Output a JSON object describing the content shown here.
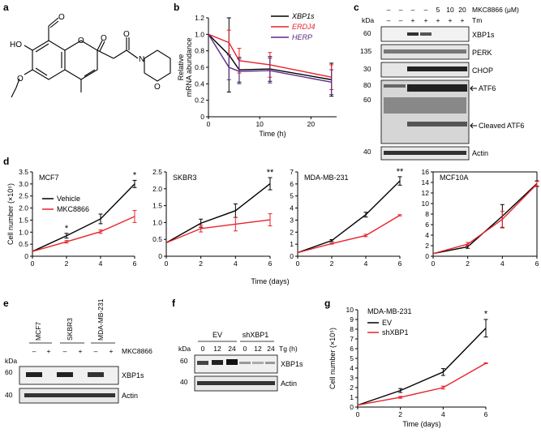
{
  "panel_labels": [
    "a",
    "b",
    "c",
    "d",
    "e",
    "f",
    "g"
  ],
  "chem": {
    "atoms": {
      "o_ald": "O",
      "ho": "HO",
      "o_ring": "O",
      "o_keto": "O",
      "o_lac": "O",
      "o_meo": "O",
      "n": "N",
      "o_morph": "O"
    }
  },
  "chart_data": [
    {
      "panel": "b",
      "type": "line",
      "ylabel": "Relative mRNA abundance",
      "ylabel_lines": [
        "Relative",
        "mRNA abundance"
      ],
      "xlabel": "Time (h)",
      "xlim": [
        0,
        25
      ],
      "ylim": [
        0,
        1.2
      ],
      "xticks": [
        "0",
        "10",
        "20"
      ],
      "xtick_values": [
        0,
        10,
        20
      ],
      "yticks": [
        "0",
        "0.2",
        "0.4",
        "0.6",
        "0.8",
        "1.0",
        "1.2"
      ],
      "ytick_values": [
        0,
        0.2,
        0.4,
        0.6,
        0.8,
        1.0,
        1.2
      ],
      "x": [
        0,
        4,
        6,
        12,
        24
      ],
      "series": [
        {
          "name": "XBP1s",
          "color": "#000000",
          "values": [
            1.0,
            0.75,
            0.57,
            0.58,
            0.45
          ],
          "err": [
            0,
            0.45,
            0.15,
            0.15,
            0.2
          ]
        },
        {
          "name": "ERDJ4",
          "color": "#e8232b",
          "values": [
            1.0,
            0.9,
            0.68,
            0.63,
            0.48
          ],
          "err": [
            0,
            0.15,
            0.15,
            0.15,
            0.15
          ]
        },
        {
          "name": "HERP",
          "color": "#5b2a86",
          "values": [
            1.0,
            0.6,
            0.55,
            0.56,
            0.42
          ],
          "err": [
            0,
            0.15,
            0.15,
            0.15,
            0.15
          ]
        }
      ]
    },
    {
      "panel": "d",
      "type": "line",
      "subtitle": "MCF7",
      "ylabel": "Cell number (×10⁵)",
      "xlabel": "Time (days)",
      "xlim": [
        0,
        6
      ],
      "ylim": [
        0,
        3.5
      ],
      "xticks": [
        "0",
        "2",
        "4",
        "6"
      ],
      "xtick_values": [
        0,
        2,
        4,
        6
      ],
      "yticks": [
        "0",
        "0.5",
        "1.0",
        "1.5",
        "2.0",
        "2.5",
        "3.0",
        "3.5"
      ],
      "ytick_values": [
        0,
        0.5,
        1.0,
        1.5,
        2.0,
        2.5,
        3.0,
        3.5
      ],
      "x": [
        0,
        2,
        4,
        6
      ],
      "series": [
        {
          "name": "Vehicle",
          "color": "#000000",
          "values": [
            0.2,
            0.85,
            1.55,
            3.0
          ],
          "err": [
            0,
            0.1,
            0.2,
            0.15
          ]
        },
        {
          "name": "MKC8866",
          "color": "#e8232b",
          "values": [
            0.2,
            0.6,
            1.02,
            1.65
          ],
          "err": [
            0,
            0.05,
            0.07,
            0.25
          ]
        }
      ],
      "annotations": [
        {
          "x": 2,
          "y": 1.05,
          "text": "*"
        },
        {
          "x": 6,
          "y": 3.25,
          "text": "*"
        }
      ]
    },
    {
      "panel": "d",
      "type": "line",
      "subtitle": "SKBR3",
      "xlim": [
        0,
        6
      ],
      "ylim": [
        0,
        2.5
      ],
      "xticks": [
        "0",
        "2",
        "4",
        "6"
      ],
      "xtick_values": [
        0,
        2,
        4,
        6
      ],
      "yticks": [
        "0",
        "0.5",
        "1.0",
        "1.5",
        "2.0",
        "2.5"
      ],
      "ytick_values": [
        0,
        0.5,
        1.0,
        1.5,
        2.0,
        2.5
      ],
      "x": [
        0,
        2,
        4,
        6
      ],
      "series": [
        {
          "name": "Vehicle",
          "color": "#000000",
          "values": [
            0.4,
            0.98,
            1.35,
            2.15
          ],
          "err": [
            0,
            0.12,
            0.2,
            0.18
          ]
        },
        {
          "name": "MKC8866",
          "color": "#e8232b",
          "values": [
            0.4,
            0.82,
            0.95,
            1.08
          ],
          "err": [
            0,
            0.1,
            0.2,
            0.18
          ]
        }
      ],
      "annotations": [
        {
          "x": 6,
          "y": 2.4,
          "text": "**"
        }
      ]
    },
    {
      "panel": "d",
      "type": "line",
      "subtitle": "MDA-MB-231",
      "xlim": [
        0,
        6
      ],
      "ylim": [
        0,
        7
      ],
      "xticks": [
        "0",
        "2",
        "4",
        "6"
      ],
      "xtick_values": [
        0,
        2,
        4,
        6
      ],
      "yticks": [
        "0",
        "1",
        "2",
        "3",
        "4",
        "5",
        "6",
        "7"
      ],
      "ytick_values": [
        0,
        1,
        2,
        3,
        4,
        5,
        6,
        7
      ],
      "x": [
        0,
        2,
        4,
        6
      ],
      "series": [
        {
          "name": "Vehicle",
          "color": "#000000",
          "values": [
            0.3,
            1.3,
            3.45,
            6.25
          ],
          "err": [
            0,
            0.08,
            0.2,
            0.35
          ]
        },
        {
          "name": "MKC8866",
          "color": "#e8232b",
          "values": [
            0.3,
            1.05,
            1.72,
            3.4
          ],
          "err": [
            0,
            0.05,
            0.1,
            0.05
          ]
        }
      ],
      "annotations": [
        {
          "x": 6,
          "y": 6.8,
          "text": "**"
        }
      ]
    },
    {
      "panel": "d",
      "type": "line",
      "subtitle": "MCF10A",
      "xlim": [
        0,
        6
      ],
      "ylim": [
        0,
        16
      ],
      "xticks": [
        "0",
        "2",
        "4",
        "6"
      ],
      "xtick_values": [
        0,
        2,
        4,
        6
      ],
      "yticks": [
        "0",
        "2",
        "4",
        "6",
        "8",
        "10",
        "12",
        "14",
        "16"
      ],
      "ytick_values": [
        0,
        2,
        4,
        6,
        8,
        10,
        12,
        14,
        16
      ],
      "x": [
        0,
        2,
        4,
        6
      ],
      "series": [
        {
          "name": "Vehicle",
          "color": "#000000",
          "values": [
            0.5,
            1.8,
            7.6,
            13.8
          ],
          "err": [
            0,
            0.3,
            2.2,
            0.5
          ]
        },
        {
          "name": "MKC8866",
          "color": "#e8232b",
          "values": [
            0.5,
            2.3,
            7.0,
            13.7
          ],
          "err": [
            0,
            0.3,
            1.5,
            0.5
          ]
        }
      ]
    },
    {
      "panel": "g",
      "type": "line",
      "subtitle": "MDA-MB-231",
      "ylabel": "Cell number (×10⁵)",
      "xlabel": "Time (days)",
      "xlim": [
        0,
        6
      ],
      "ylim": [
        0,
        10
      ],
      "xticks": [
        "0",
        "2",
        "4",
        "6"
      ],
      "xtick_values": [
        0,
        2,
        4,
        6
      ],
      "yticks": [
        "0",
        "1",
        "2",
        "3",
        "4",
        "5",
        "6",
        "7",
        "8",
        "9",
        "10"
      ],
      "ytick_values": [
        0,
        1,
        2,
        3,
        4,
        5,
        6,
        7,
        8,
        9,
        10
      ],
      "x": [
        0,
        2,
        4,
        6
      ],
      "series": [
        {
          "name": "EV",
          "color": "#000000",
          "values": [
            0.2,
            1.7,
            3.6,
            8.1
          ],
          "err": [
            0,
            0.2,
            0.35,
            0.9
          ]
        },
        {
          "name": "shXBP1",
          "color": "#e8232b",
          "values": [
            0.2,
            1.0,
            2.0,
            4.5
          ],
          "err": [
            0,
            0.1,
            0.15,
            0.05
          ]
        }
      ],
      "annotations": [
        {
          "x": 6,
          "y": 9.3,
          "text": "*"
        }
      ]
    }
  ],
  "legend_b": [
    {
      "label": "XBP1s",
      "color": "#000000"
    },
    {
      "label": "ERDJ4",
      "color": "#e8232b"
    },
    {
      "label": "HERP",
      "color": "#5b2a86"
    }
  ],
  "legend_d": [
    {
      "label": "Vehicle",
      "color": "#000000"
    },
    {
      "label": "MKC8866",
      "color": "#e8232b"
    }
  ],
  "legend_g": [
    {
      "label": "EV",
      "color": "#000000"
    },
    {
      "label": "shXBP1",
      "color": "#e8232b"
    }
  ],
  "shared_xlabel_d": "Time (days)",
  "blot_c": {
    "treatment1_label": "MKC8866 (μM)",
    "treatment1_values": [
      "–",
      "–",
      "–",
      "–",
      "5",
      "10",
      "20"
    ],
    "treatment2_label": "Tm",
    "treatment2_values": [
      "–",
      "–",
      "+",
      "+",
      "+",
      "+",
      "+"
    ],
    "kda_label": "kDa",
    "markers": [
      "60",
      "135",
      "30",
      "80",
      "60",
      "40"
    ],
    "strips": [
      "XBP1s",
      "PERK",
      "CHOP",
      "",
      "Actin"
    ],
    "annotations": [
      "ATF6",
      "Cleaved ATF6"
    ]
  },
  "blot_e": {
    "cell_lines": [
      "MCF7",
      "SKBR3",
      "MDA-MB-231"
    ],
    "treatment_values": [
      "–",
      "+",
      "–",
      "+",
      "–",
      "+"
    ],
    "treatment_label": "MKC8866",
    "kda_label": "kDa",
    "markers": [
      "60",
      "40"
    ],
    "strips": [
      "XBP1s",
      "Actin"
    ]
  },
  "blot_f": {
    "groups": [
      "EV",
      "shXBP1"
    ],
    "timepoints": [
      "0",
      "12",
      "24",
      "0",
      "12",
      "24"
    ],
    "treatment_label": "Tg (h)",
    "kda_label": "kDa",
    "markers": [
      "60",
      "40"
    ],
    "strips": [
      "XBP1s",
      "Actin"
    ]
  }
}
